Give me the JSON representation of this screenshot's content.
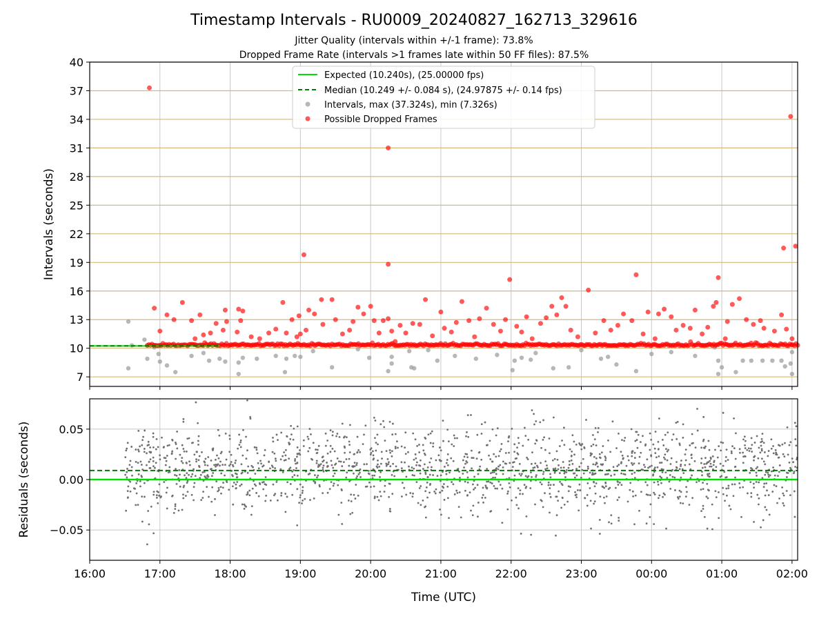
{
  "title": "Timestamp Intervals - RU0009_20240827_162713_329616",
  "subtitles": [
    "Jitter Quality (intervals within +/-1 frame): 73.8%",
    "Dropped Frame Rate (intervals >1 frames late within 50 FF files): 87.5%"
  ],
  "colors": {
    "expected": "#00e000",
    "median": "#007a00",
    "intervals": "#999999",
    "dropped": "#ff0000",
    "hgrid": "#d4b97a",
    "vgrid": "#c8c8c8",
    "residual_points": "#707070"
  },
  "chart_data": [
    {
      "type": "scatter",
      "ylabel": "Intervals (seconds)",
      "ylim": [
        6,
        40
      ],
      "yticks": [
        "7",
        "10",
        "13",
        "16",
        "19",
        "22",
        "25",
        "28",
        "31",
        "34",
        "37",
        "40"
      ],
      "yscale": "linear",
      "x_unit": "hours since 16:00 UTC",
      "xlim": [
        0,
        10.08
      ],
      "grid": true,
      "legend_position": "upper center",
      "legend": [
        {
          "type": "line",
          "label": "Expected (10.240s), (25.00000 fps)"
        },
        {
          "type": "dashed-line",
          "label": "Median (10.249 +/- 0.084 s), (24.97875 +/- 0.14 fps)"
        },
        {
          "type": "dot",
          "label": "Intervals, max (37.324s), min (7.326s)"
        },
        {
          "type": "dot",
          "label": "Possible Dropped Frames"
        }
      ],
      "series": [
        {
          "name": "Expected",
          "kind": "line",
          "y": 10.24
        },
        {
          "name": "Median",
          "kind": "dashed-line",
          "y": 10.249
        },
        {
          "name": "Intervals",
          "kind": "points",
          "points": [
            [
              0.55,
              12.8
            ],
            [
              0.55,
              7.9
            ],
            [
              0.6,
              10.3
            ],
            [
              0.78,
              10.9
            ],
            [
              0.82,
              8.9
            ],
            [
              0.92,
              10.1
            ],
            [
              0.98,
              9.4
            ],
            [
              1.0,
              8.6
            ],
            [
              1.1,
              8.2
            ],
            [
              1.22,
              7.5
            ],
            [
              1.45,
              9.2
            ],
            [
              1.62,
              9.5
            ],
            [
              1.7,
              8.7
            ],
            [
              1.85,
              8.9
            ],
            [
              1.93,
              8.6
            ],
            [
              2.12,
              7.3
            ],
            [
              2.12,
              8.5
            ],
            [
              2.18,
              9.0
            ],
            [
              2.38,
              8.9
            ],
            [
              2.65,
              9.2
            ],
            [
              2.78,
              7.5
            ],
            [
              2.8,
              8.9
            ],
            [
              2.92,
              9.2
            ],
            [
              3.0,
              9.1
            ],
            [
              3.18,
              9.7
            ],
            [
              3.45,
              8.0
            ],
            [
              3.82,
              9.9
            ],
            [
              3.98,
              9.0
            ],
            [
              4.25,
              7.6
            ],
            [
              4.3,
              9.1
            ],
            [
              4.3,
              8.4
            ],
            [
              4.55,
              9.7
            ],
            [
              4.58,
              8.0
            ],
            [
              4.62,
              7.9
            ],
            [
              4.82,
              9.8
            ],
            [
              4.95,
              8.7
            ],
            [
              5.2,
              9.2
            ],
            [
              5.5,
              8.9
            ],
            [
              5.8,
              9.3
            ],
            [
              6.02,
              7.7
            ],
            [
              6.05,
              8.7
            ],
            [
              6.15,
              9.0
            ],
            [
              6.28,
              8.8
            ],
            [
              6.35,
              9.5
            ],
            [
              6.6,
              7.9
            ],
            [
              6.82,
              8.0
            ],
            [
              7.0,
              9.8
            ],
            [
              7.28,
              8.9
            ],
            [
              7.38,
              9.1
            ],
            [
              7.5,
              8.3
            ],
            [
              7.62,
              10.4
            ],
            [
              7.78,
              7.6
            ],
            [
              8.0,
              9.4
            ],
            [
              8.28,
              9.6
            ],
            [
              8.62,
              9.2
            ],
            [
              8.9,
              10.1
            ],
            [
              8.95,
              7.3
            ],
            [
              8.95,
              8.7
            ],
            [
              9.0,
              8.0
            ],
            [
              9.2,
              7.5
            ],
            [
              9.3,
              8.7
            ],
            [
              9.42,
              8.7
            ],
            [
              9.58,
              8.7
            ],
            [
              9.72,
              8.7
            ],
            [
              9.85,
              8.7
            ],
            [
              9.9,
              8.1
            ],
            [
              9.98,
              8.4
            ],
            [
              10.0,
              9.6
            ],
            [
              10.0,
              7.3
            ]
          ]
        },
        {
          "name": "Possible Dropped Frames",
          "kind": "points",
          "points": [
            [
              0.85,
              37.3
            ],
            [
              0.92,
              14.2
            ],
            [
              1.0,
              11.8
            ],
            [
              1.1,
              13.5
            ],
            [
              1.2,
              13.0
            ],
            [
              1.32,
              14.8
            ],
            [
              1.45,
              12.9
            ],
            [
              1.5,
              11.0
            ],
            [
              1.57,
              13.5
            ],
            [
              1.62,
              11.4
            ],
            [
              1.72,
              11.6
            ],
            [
              1.8,
              12.6
            ],
            [
              1.9,
              11.9
            ],
            [
              1.93,
              14.0
            ],
            [
              1.95,
              12.8
            ],
            [
              2.1,
              11.7
            ],
            [
              2.12,
              14.1
            ],
            [
              2.18,
              13.9
            ],
            [
              2.15,
              12.9
            ],
            [
              2.3,
              11.2
            ],
            [
              2.42,
              11.0
            ],
            [
              2.55,
              11.6
            ],
            [
              2.65,
              12.0
            ],
            [
              2.75,
              14.8
            ],
            [
              2.8,
              11.6
            ],
            [
              2.88,
              13.0
            ],
            [
              2.95,
              11.2
            ],
            [
              2.98,
              13.4
            ],
            [
              3.0,
              11.5
            ],
            [
              3.05,
              19.8
            ],
            [
              3.08,
              11.9
            ],
            [
              3.12,
              14.0
            ],
            [
              3.2,
              13.6
            ],
            [
              3.3,
              15.1
            ],
            [
              3.32,
              12.5
            ],
            [
              3.45,
              15.1
            ],
            [
              3.5,
              13.0
            ],
            [
              3.6,
              11.5
            ],
            [
              3.7,
              11.9
            ],
            [
              3.75,
              12.8
            ],
            [
              3.82,
              14.3
            ],
            [
              3.9,
              13.6
            ],
            [
              4.0,
              14.4
            ],
            [
              4.05,
              12.9
            ],
            [
              4.12,
              11.6
            ],
            [
              4.18,
              12.9
            ],
            [
              4.25,
              31.0
            ],
            [
              4.25,
              18.8
            ],
            [
              4.25,
              13.1
            ],
            [
              4.3,
              11.8
            ],
            [
              4.35,
              10.7
            ],
            [
              4.42,
              12.4
            ],
            [
              4.5,
              11.6
            ],
            [
              4.6,
              12.6
            ],
            [
              4.7,
              12.5
            ],
            [
              4.78,
              15.1
            ],
            [
              4.88,
              11.3
            ],
            [
              5.0,
              13.8
            ],
            [
              5.05,
              12.1
            ],
            [
              5.15,
              11.7
            ],
            [
              5.22,
              12.7
            ],
            [
              5.3,
              14.9
            ],
            [
              5.4,
              12.9
            ],
            [
              5.48,
              11.2
            ],
            [
              5.55,
              13.1
            ],
            [
              5.65,
              14.2
            ],
            [
              5.75,
              12.5
            ],
            [
              5.85,
              11.8
            ],
            [
              5.92,
              13.0
            ],
            [
              5.98,
              17.2
            ],
            [
              6.08,
              12.3
            ],
            [
              6.15,
              11.7
            ],
            [
              6.22,
              13.3
            ],
            [
              6.3,
              11.0
            ],
            [
              6.42,
              12.6
            ],
            [
              6.5,
              13.2
            ],
            [
              6.58,
              14.4
            ],
            [
              6.65,
              13.5
            ],
            [
              6.72,
              15.3
            ],
            [
              6.78,
              14.4
            ],
            [
              6.85,
              11.9
            ],
            [
              6.95,
              11.2
            ],
            [
              7.1,
              16.1
            ],
            [
              7.2,
              11.6
            ],
            [
              7.32,
              12.9
            ],
            [
              7.42,
              11.9
            ],
            [
              7.52,
              12.4
            ],
            [
              7.6,
              13.6
            ],
            [
              7.72,
              12.9
            ],
            [
              7.78,
              17.7
            ],
            [
              7.88,
              11.5
            ],
            [
              7.95,
              13.8
            ],
            [
              8.05,
              11.0
            ],
            [
              8.1,
              13.6
            ],
            [
              8.18,
              14.1
            ],
            [
              8.28,
              13.3
            ],
            [
              8.35,
              11.9
            ],
            [
              8.45,
              12.4
            ],
            [
              8.55,
              12.1
            ],
            [
              8.62,
              14.0
            ],
            [
              8.72,
              11.5
            ],
            [
              8.8,
              12.2
            ],
            [
              8.88,
              14.4
            ],
            [
              8.92,
              14.8
            ],
            [
              8.95,
              17.4
            ],
            [
              9.05,
              11.0
            ],
            [
              9.08,
              12.8
            ],
            [
              9.15,
              14.6
            ],
            [
              9.25,
              15.2
            ],
            [
              9.35,
              13.0
            ],
            [
              9.45,
              12.5
            ],
            [
              9.55,
              12.9
            ],
            [
              9.6,
              12.1
            ],
            [
              9.75,
              11.8
            ],
            [
              9.85,
              13.5
            ],
            [
              9.88,
              20.5
            ],
            [
              9.92,
              12.0
            ],
            [
              9.98,
              34.3
            ],
            [
              10.0,
              11.0
            ],
            [
              10.05,
              20.7
            ]
          ]
        }
      ]
    },
    {
      "type": "scatter",
      "ylabel": "Residuals (seconds)",
      "xlabel": "Time (UTC)",
      "ylim": [
        -0.08,
        0.08
      ],
      "yticks": [
        "−0.05",
        "0.00",
        "0.05"
      ],
      "x_unit": "hours since 16:00 UTC",
      "xlim": [
        0,
        10.08
      ],
      "xticks": [
        "16:00",
        "17:00",
        "18:00",
        "19:00",
        "20:00",
        "21:00",
        "22:00",
        "23:00",
        "00:00",
        "01:00",
        "02:00"
      ],
      "grid": true,
      "series": [
        {
          "name": "Expected",
          "kind": "line",
          "y": 0.0
        },
        {
          "name": "Median",
          "kind": "dashed-line",
          "y": 0.009
        },
        {
          "name": "Residuals",
          "kind": "points",
          "x_range": [
            0.5,
            10.08
          ],
          "center": 0.009,
          "spread": 0.022
        }
      ]
    }
  ]
}
